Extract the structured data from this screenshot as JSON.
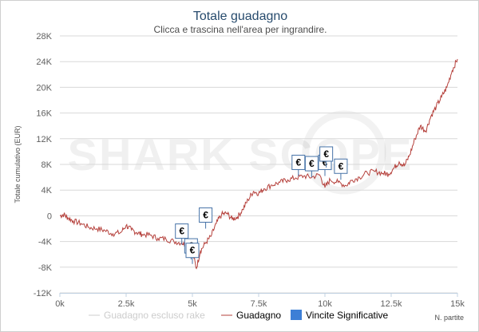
{
  "chart_data": {
    "type": "line",
    "title": "Totale guadagno",
    "subtitle": "Clicca e trascina nell'area per ingrandire.",
    "ylabel": "Totale cumulativo (EUR)",
    "xlabel": "N. partite",
    "xlim": [
      0,
      15000
    ],
    "ylim": [
      -12000,
      28000
    ],
    "x_ticks": [
      0,
      2500,
      5000,
      7500,
      10000,
      12500,
      15000
    ],
    "x_tick_labels": [
      "0k",
      "2.5k",
      "5k",
      "7.5k",
      "10k",
      "12.5k",
      "15k"
    ],
    "y_ticks": [
      -12000,
      -8000,
      -4000,
      0,
      4000,
      8000,
      12000,
      16000,
      20000,
      24000,
      28000
    ],
    "y_tick_labels": [
      "-12K",
      "-8K",
      "-4K",
      "0",
      "4K",
      "8K",
      "12K",
      "16K",
      "20K",
      "24K",
      "28K"
    ],
    "grid": true,
    "legend_position": "bottom",
    "watermark": "SHARK SCOPE",
    "colors": {
      "profit": "#b5403b",
      "rake_excluded": "#cccccc",
      "wins": "#3d7fd6",
      "title": "#274b6d"
    },
    "series": [
      {
        "name": "Guadagno escluso rake",
        "visible": false,
        "x": [],
        "y": []
      },
      {
        "name": "Guadagno",
        "visible": true,
        "x": [
          0,
          150,
          300,
          500,
          800,
          1100,
          1400,
          1700,
          2000,
          2300,
          2500,
          2700,
          2900,
          3100,
          3400,
          3700,
          4000,
          4300,
          4600,
          4800,
          5000,
          5150,
          5300,
          5500,
          5700,
          5900,
          6100,
          6300,
          6500,
          6700,
          6900,
          7100,
          7300,
          7500,
          7700,
          8000,
          8300,
          8600,
          8900,
          9200,
          9500,
          9800,
          10000,
          10200,
          10500,
          10800,
          11000,
          11300,
          11600,
          11900,
          12200,
          12400,
          12600,
          12800,
          13000,
          13200,
          13400,
          13600,
          13800,
          14000,
          14200,
          14400,
          14600,
          14800,
          15000
        ],
        "y": [
          0,
          200,
          -300,
          -800,
          -1200,
          -1800,
          -2000,
          -2300,
          -2800,
          -2600,
          -1500,
          -2200,
          -2600,
          -2900,
          -3000,
          -3500,
          -3600,
          -4000,
          -4200,
          -4600,
          -5500,
          -8200,
          -5500,
          -4200,
          -3200,
          -1200,
          200,
          400,
          -500,
          -200,
          1000,
          2500,
          3800,
          3500,
          4200,
          4800,
          5200,
          5600,
          5900,
          6200,
          6000,
          6400,
          4400,
          5600,
          5200,
          4700,
          5500,
          6000,
          6700,
          6900,
          6600,
          6500,
          7400,
          8400,
          7800,
          9500,
          12000,
          14000,
          13200,
          15500,
          17000,
          18500,
          20000,
          22600,
          24400
        ]
      },
      {
        "name": "Vincite Significative",
        "type": "flags",
        "symbol": "€",
        "x": [
          4600,
          4950,
          5000,
          5500,
          9000,
          9500,
          10000,
          10050,
          10600
        ],
        "y": [
          -3500,
          -5800,
          -6500,
          -1000,
          7200,
          7000,
          7200,
          8500,
          6600
        ]
      }
    ]
  }
}
